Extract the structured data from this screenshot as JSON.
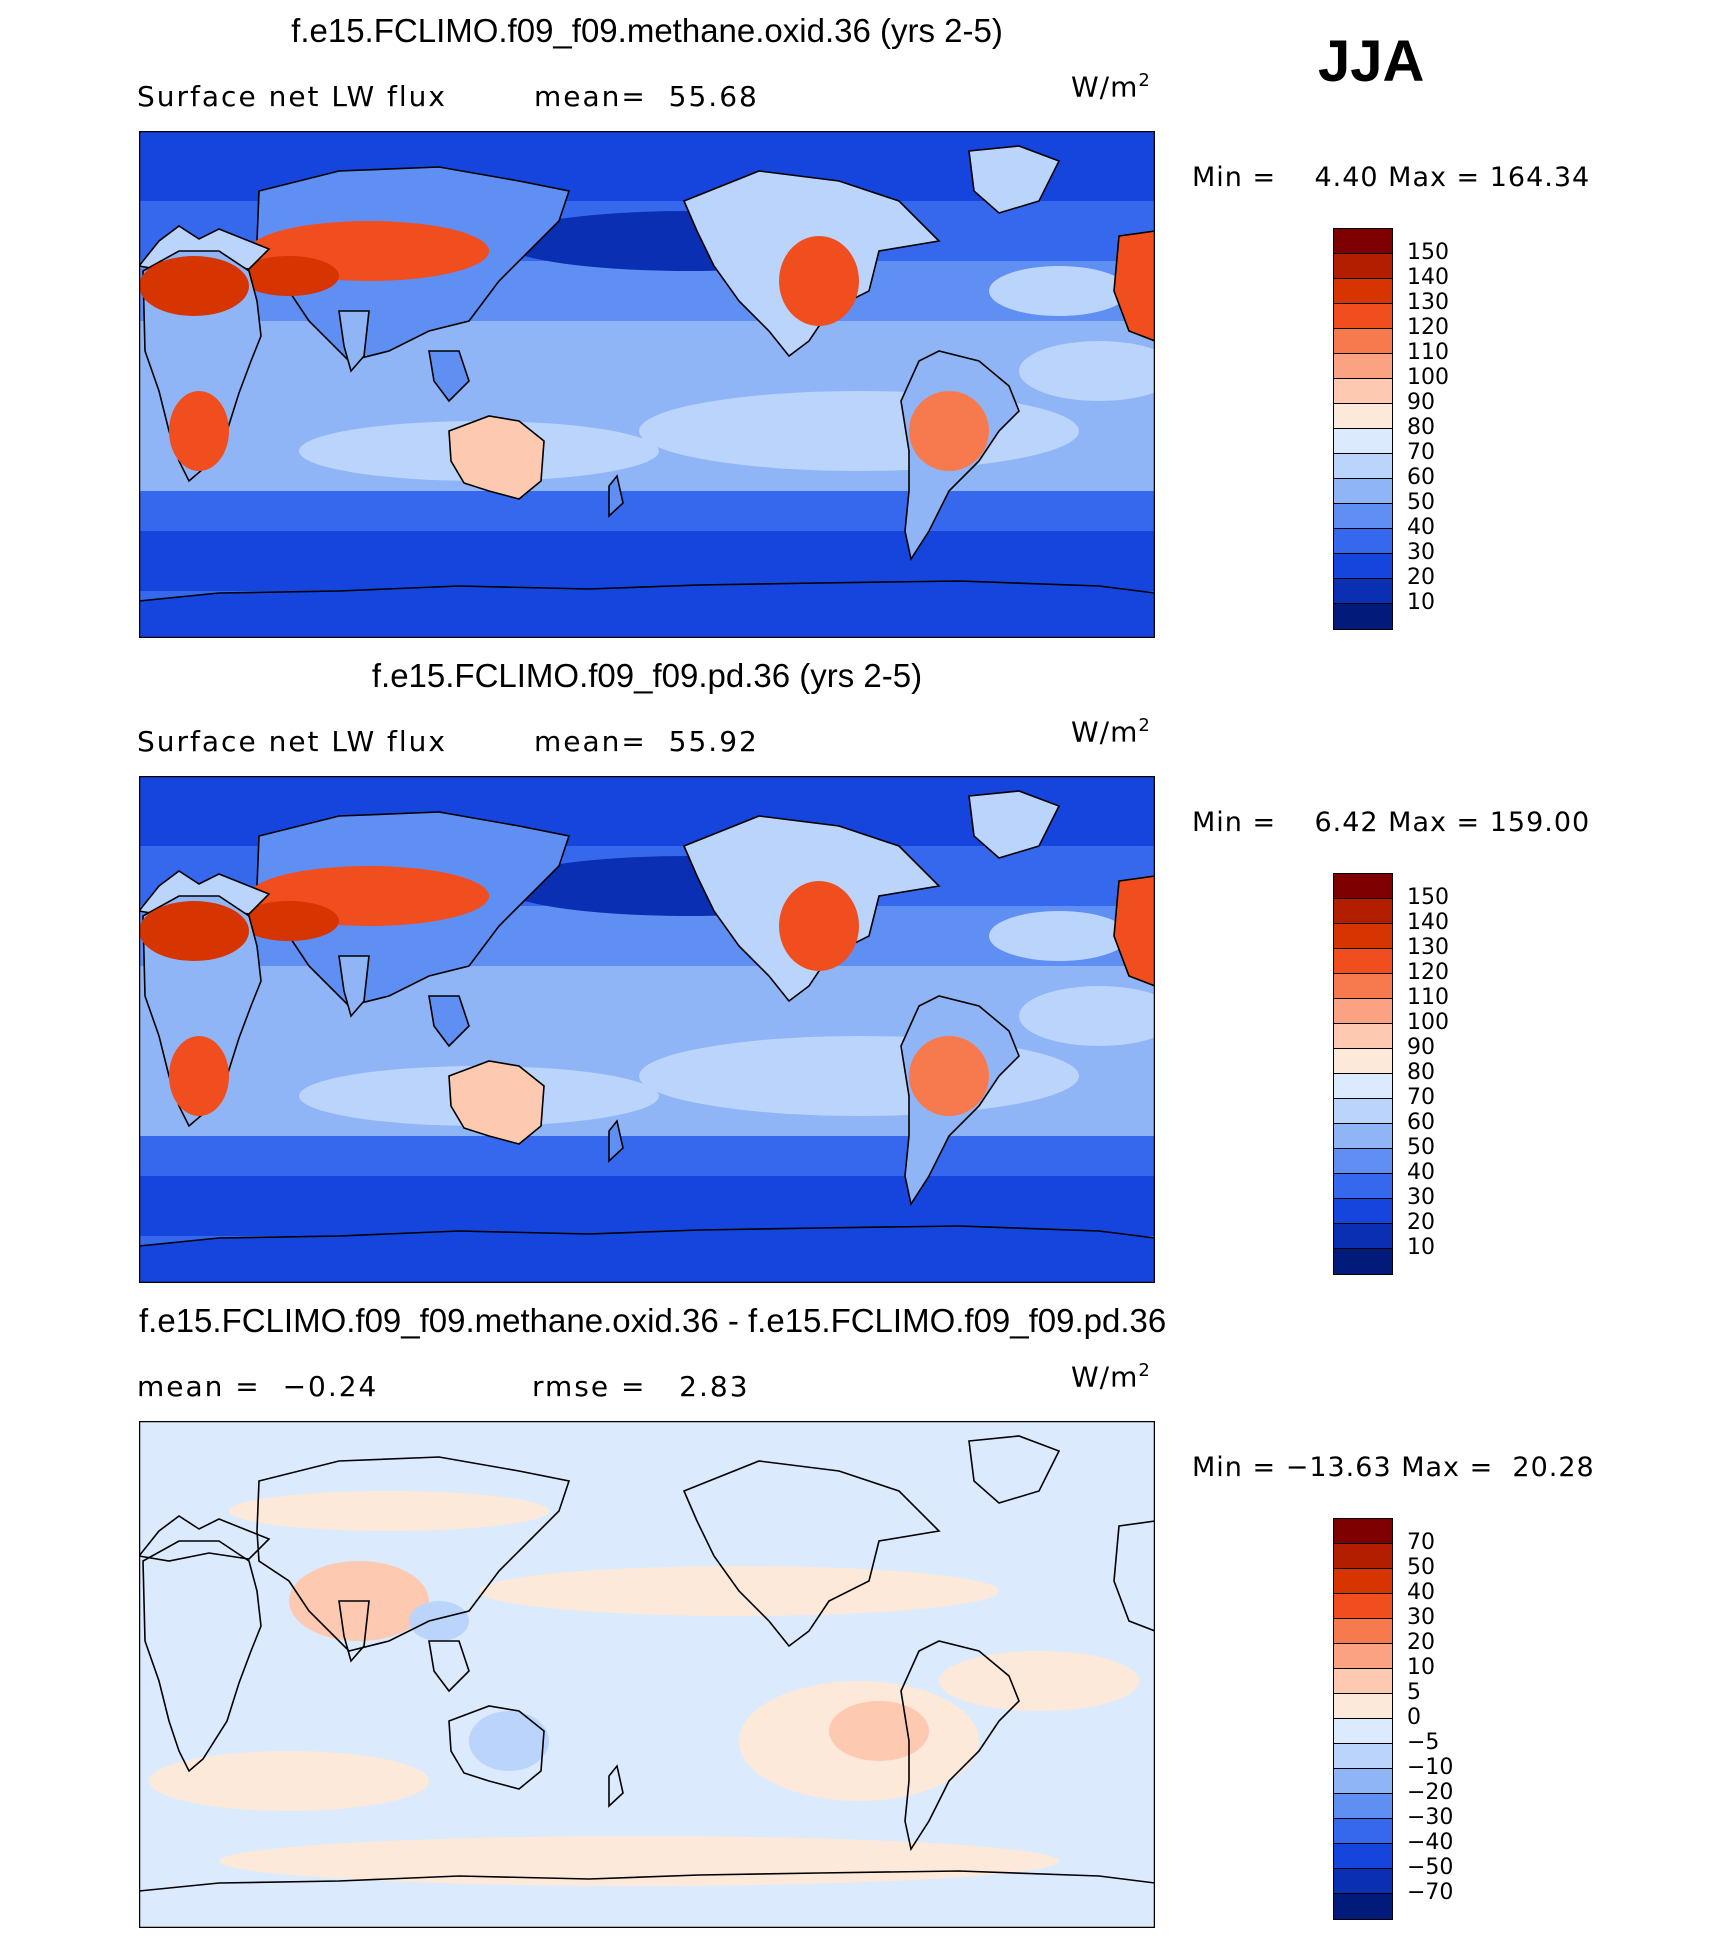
{
  "season": "JJA",
  "panels": [
    {
      "title": "f.e15.FCLIMO.f09_f09.methane.oxid.36 (yrs 2-5)",
      "left_label": "Surface net LW flux",
      "mid_label": "mean=  55.68",
      "units_base": "W/m",
      "units_exp": "2",
      "minmax": "Min =    4.40 Max = 164.34",
      "colorbar_labels": [
        "150",
        "140",
        "130",
        "120",
        "110",
        "100",
        "90",
        "80",
        "70",
        "60",
        "50",
        "40",
        "30",
        "20",
        "10"
      ]
    },
    {
      "title": "f.e15.FCLIMO.f09_f09.pd.36 (yrs 2-5)",
      "left_label": "Surface net LW flux",
      "mid_label": "mean=  55.92",
      "units_base": "W/m",
      "units_exp": "2",
      "minmax": "Min =    6.42 Max = 159.00",
      "colorbar_labels": [
        "150",
        "140",
        "130",
        "120",
        "110",
        "100",
        "90",
        "80",
        "70",
        "60",
        "50",
        "40",
        "30",
        "20",
        "10"
      ]
    },
    {
      "title": "f.e15.FCLIMO.f09_f09.methane.oxid.36 - f.e15.FCLIMO.f09_f09.pd.36",
      "left_label": "mean =  −0.24",
      "mid_label": "rmse =   2.83",
      "units_base": "W/m",
      "units_exp": "2",
      "minmax": "Min = −13.63 Max =  20.28",
      "colorbar_labels": [
        "70",
        "50",
        "40",
        "30",
        "20",
        "10",
        "5",
        "0",
        "−5",
        "−10",
        "−20",
        "−30",
        "−40",
        "−50",
        "−70"
      ]
    }
  ],
  "colors": {
    "colorbar": [
      "#7f0000",
      "#b31d00",
      "#d63400",
      "#f04e1e",
      "#f77a4f",
      "#fba283",
      "#fdc9b0",
      "#fde9da",
      "#dceafd",
      "#bad4fb",
      "#8fb5f7",
      "#5f8ff2",
      "#3568ec",
      "#1545dd",
      "#0b2fb2",
      "#021a7a"
    ],
    "diff_colorbar": [
      "#7f0000",
      "#b31d00",
      "#d63400",
      "#f04e1e",
      "#f77a4f",
      "#fba283",
      "#fdc9b0",
      "#fde9da",
      "#dceafd",
      "#bad4fb",
      "#8fb5f7",
      "#5f8ff2",
      "#3568ec",
      "#1545dd",
      "#0b2fb2",
      "#021a7a"
    ],
    "coastline": "#000000"
  }
}
